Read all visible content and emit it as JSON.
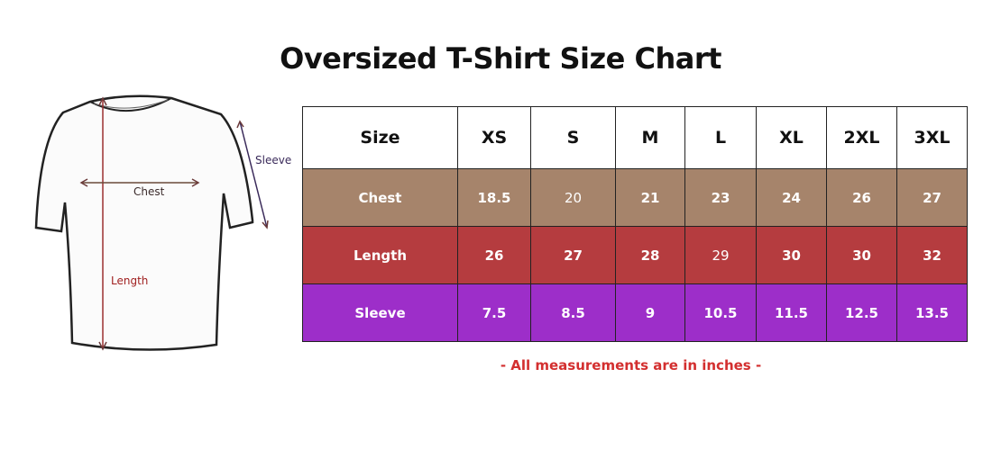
{
  "title": "Oversized T-Shirt Size Chart",
  "diagram": {
    "labels": [
      "Chest",
      "Length",
      "Sleeve"
    ]
  },
  "table": {
    "header": [
      "Size",
      "XS",
      "S",
      "M",
      "L",
      "XL",
      "2XL",
      "3XL"
    ],
    "rows": [
      [
        "Chest",
        "18.5",
        "20",
        "21",
        "23",
        "24",
        "26",
        "27"
      ],
      [
        "Length",
        "26",
        "27",
        "28",
        "29",
        "30",
        "30",
        "32"
      ],
      [
        "Sleeve",
        "7.5",
        "8.5",
        "9",
        "10.5",
        "11.5",
        "12.5",
        "13.5"
      ]
    ]
  },
  "note": "- All measurements are in inches -"
}
